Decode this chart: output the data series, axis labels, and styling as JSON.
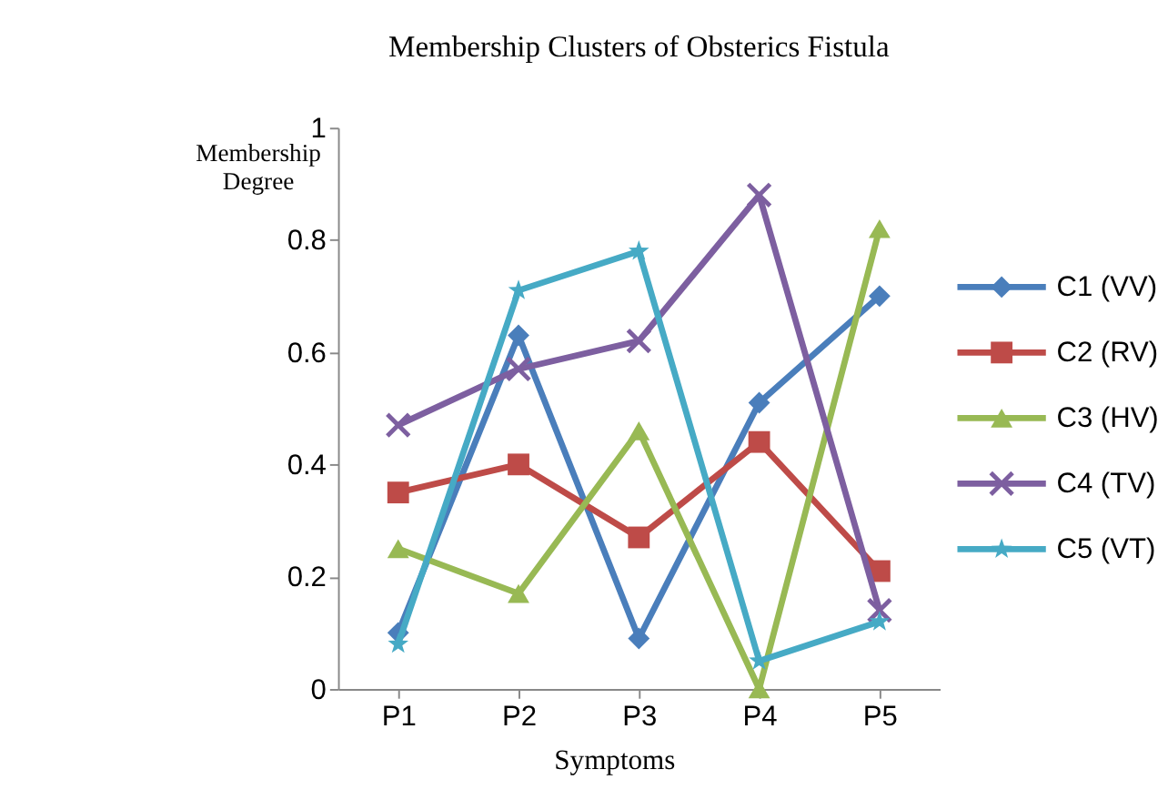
{
  "chart_data": {
    "type": "line",
    "title": "Membership Clusters of Obsterics Fistula",
    "xlabel": "Symptoms",
    "ylabel": "Membership Degree",
    "categories": [
      "P1",
      "P2",
      "P3",
      "P4",
      "P5"
    ],
    "series": [
      {
        "name": "C1 (VV)",
        "color": "#4a7ebb",
        "marker": "diamond",
        "values": [
          0.1,
          0.63,
          0.09,
          0.51,
          0.7
        ]
      },
      {
        "name": "C2 (RV)",
        "color": "#be4b48",
        "marker": "square",
        "values": [
          0.35,
          0.4,
          0.27,
          0.44,
          0.21
        ]
      },
      {
        "name": "C3 (HV)",
        "color": "#98b954",
        "marker": "triangle",
        "values": [
          0.25,
          0.17,
          0.46,
          0.0,
          0.82
        ]
      },
      {
        "name": "C4 (TV)",
        "color": "#7d5fa0",
        "marker": "cross",
        "values": [
          0.47,
          0.57,
          0.62,
          0.88,
          0.14
        ]
      },
      {
        "name": "C5 (VT)",
        "color": "#46aac5",
        "marker": "star",
        "values": [
          0.08,
          0.71,
          0.78,
          0.05,
          0.12
        ]
      }
    ],
    "ylim": [
      0,
      1
    ],
    "yticks": [
      0,
      0.2,
      0.4,
      0.6,
      0.8,
      1
    ],
    "grid": false,
    "legend": "right",
    "line_style": "solid"
  }
}
